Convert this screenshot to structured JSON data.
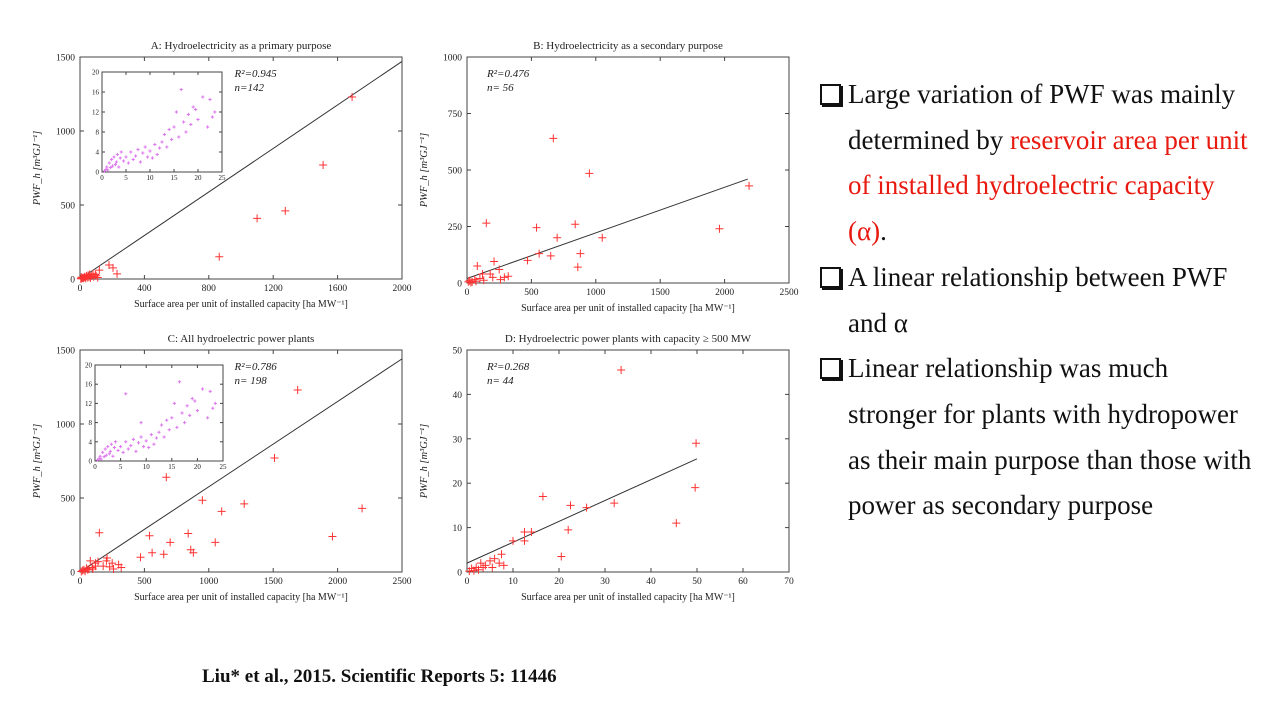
{
  "bullets": [
    {
      "parts": [
        {
          "text": "Large variation of PWF was mainly determined by ",
          "hl": false
        },
        {
          "text": "reservoir area per unit of installed hydroelectric capacity (α)",
          "hl": true
        },
        {
          "text": ".",
          "hl": false
        }
      ]
    },
    {
      "parts": [
        {
          "text": "A linear relationship between PWF and α",
          "hl": false
        }
      ]
    },
    {
      "parts": [
        {
          "text": "Linear relationship was much stronger for plants with hydropower as their main purpose than those with power as secondary purpose",
          "hl": false
        }
      ]
    }
  ],
  "citation": "Liu* et al., 2015. Scientific Reports 5: 11446",
  "colors": {
    "points": "#ff3333",
    "inset_points": "#dd77ee",
    "fit_line": "#333333",
    "highlight": "#e8190f"
  },
  "chart_data": [
    {
      "type": "scatter",
      "title": "A: Hydroelectricity as a primary purpose",
      "xlabel": "Surface area per unit of installed capacity [ha MW⁻¹]",
      "ylabel": "PWF_h [m³GJ⁻¹]",
      "xlim": [
        0,
        2000
      ],
      "ylim": [
        0,
        1500
      ],
      "xticks": [
        0,
        400,
        800,
        1200,
        1600,
        2000
      ],
      "yticks": [
        0,
        500,
        1000,
        1500
      ],
      "stats": [
        "R²=0.945",
        "n=142"
      ],
      "fit": [
        [
          0,
          0
        ],
        [
          2000,
          1470
        ]
      ],
      "points": [
        [
          1690,
          1230
        ],
        [
          1510,
          770
        ],
        [
          1275,
          460
        ],
        [
          1100,
          410
        ],
        [
          865,
          150
        ],
        [
          230,
          35
        ],
        [
          205,
          75
        ],
        [
          180,
          95
        ],
        [
          120,
          60
        ],
        [
          95,
          30
        ],
        [
          80,
          35
        ],
        [
          70,
          20
        ],
        [
          60,
          30
        ],
        [
          50,
          25
        ],
        [
          45,
          10
        ],
        [
          40,
          20
        ],
        [
          30,
          15
        ],
        [
          25,
          10
        ],
        [
          20,
          5
        ],
        [
          15,
          8
        ],
        [
          10,
          3
        ],
        [
          5,
          2
        ],
        [
          8,
          12
        ],
        [
          35,
          5
        ],
        [
          55,
          12
        ],
        [
          65,
          8
        ],
        [
          85,
          15
        ],
        [
          100,
          22
        ],
        [
          110,
          10
        ]
      ],
      "inset": {
        "xlim": [
          0,
          25
        ],
        "ylim": [
          0,
          20
        ],
        "xticks": [
          0,
          5,
          10,
          15,
          20,
          25
        ],
        "yticks": [
          0,
          4,
          8,
          12,
          16,
          20
        ],
        "points": [
          [
            0.5,
            0.2
          ],
          [
            0.8,
            0.5
          ],
          [
            1,
            1
          ],
          [
            1.2,
            0.4
          ],
          [
            1.5,
            1.8
          ],
          [
            1.8,
            0.9
          ],
          [
            2,
            2.5
          ],
          [
            2.2,
            1.2
          ],
          [
            2.5,
            3
          ],
          [
            2.8,
            1.5
          ],
          [
            3,
            2
          ],
          [
            3.2,
            3.5
          ],
          [
            3.5,
            1
          ],
          [
            3.8,
            2.8
          ],
          [
            4,
            4
          ],
          [
            4.5,
            2.2
          ],
          [
            5,
            3
          ],
          [
            5.5,
            1.8
          ],
          [
            6,
            4
          ],
          [
            6.5,
            2.5
          ],
          [
            7,
            3.2
          ],
          [
            7.5,
            4.5
          ],
          [
            8,
            2
          ],
          [
            8.5,
            3.8
          ],
          [
            9,
            5
          ],
          [
            9.5,
            3
          ],
          [
            10,
            4.2
          ],
          [
            10.5,
            2.8
          ],
          [
            11,
            5.5
          ],
          [
            11.5,
            3.5
          ],
          [
            12,
            4.8
          ],
          [
            12.5,
            6
          ],
          [
            13,
            7.5
          ],
          [
            13.5,
            5
          ],
          [
            14,
            8.5
          ],
          [
            14.5,
            6.5
          ],
          [
            15,
            9
          ],
          [
            15.5,
            12
          ],
          [
            16,
            7
          ],
          [
            16.5,
            16.5
          ],
          [
            17,
            10
          ],
          [
            17.5,
            8
          ],
          [
            18,
            11.5
          ],
          [
            18.5,
            9.5
          ],
          [
            19,
            13
          ],
          [
            19.5,
            12.5
          ],
          [
            20,
            10.5
          ],
          [
            21,
            15
          ],
          [
            22,
            9
          ],
          [
            22.5,
            14.5
          ],
          [
            23,
            11
          ],
          [
            23.5,
            12
          ]
        ]
      }
    },
    {
      "type": "scatter",
      "title": "B:  Hydroelectricity as a secondary purpose",
      "xlabel": "Surface area per unit of installed capacity [ha MW⁻¹]",
      "ylabel": "PWF_h [m³GJ⁻¹]",
      "xlim": [
        0,
        2500
      ],
      "ylim": [
        0,
        1000
      ],
      "xticks": [
        0,
        500,
        1000,
        1500,
        2000,
        2500
      ],
      "yticks": [
        0,
        250,
        500,
        750,
        1000
      ],
      "stats": [
        "R²=0.476",
        "n= 56"
      ],
      "fit": [
        [
          0,
          20
        ],
        [
          2180,
          460
        ]
      ],
      "points": [
        [
          2190,
          430
        ],
        [
          1960,
          240
        ],
        [
          1050,
          200
        ],
        [
          950,
          485
        ],
        [
          880,
          130
        ],
        [
          860,
          70
        ],
        [
          840,
          260
        ],
        [
          700,
          200
        ],
        [
          670,
          640
        ],
        [
          650,
          120
        ],
        [
          560,
          130
        ],
        [
          540,
          245
        ],
        [
          470,
          100
        ],
        [
          320,
          30
        ],
        [
          290,
          25
        ],
        [
          250,
          60
        ],
        [
          210,
          95
        ],
        [
          180,
          40
        ],
        [
          150,
          265
        ],
        [
          120,
          40
        ],
        [
          100,
          20
        ],
        [
          80,
          75
        ],
        [
          60,
          15
        ],
        [
          40,
          5
        ],
        [
          20,
          10
        ],
        [
          30,
          2
        ],
        [
          70,
          8
        ],
        [
          130,
          12
        ],
        [
          200,
          25
        ],
        [
          260,
          15
        ],
        [
          10,
          5
        ]
      ]
    },
    {
      "type": "scatter",
      "title": "C: All hydroelectric power plants",
      "xlabel": "Surface area per unit of installed capacity [ha MW⁻¹]",
      "ylabel": "PWF_h [m³GJ⁻¹]",
      "xlim": [
        0,
        2500
      ],
      "ylim": [
        0,
        1500
      ],
      "xticks": [
        0,
        500,
        1000,
        1500,
        2000,
        2500
      ],
      "yticks": [
        0,
        500,
        1000,
        1500
      ],
      "stats": [
        "R²=0.786",
        "n= 198"
      ],
      "fit": [
        [
          0,
          0
        ],
        [
          2500,
          1440
        ]
      ],
      "points": [
        [
          1690,
          1230
        ],
        [
          1510,
          770
        ],
        [
          1275,
          460
        ],
        [
          1100,
          410
        ],
        [
          1050,
          200
        ],
        [
          2190,
          430
        ],
        [
          1960,
          240
        ],
        [
          950,
          485
        ],
        [
          880,
          130
        ],
        [
          860,
          150
        ],
        [
          840,
          260
        ],
        [
          700,
          200
        ],
        [
          670,
          640
        ],
        [
          650,
          120
        ],
        [
          560,
          130
        ],
        [
          540,
          245
        ],
        [
          470,
          100
        ],
        [
          320,
          30
        ],
        [
          250,
          60
        ],
        [
          210,
          95
        ],
        [
          180,
          40
        ],
        [
          150,
          265
        ],
        [
          120,
          40
        ],
        [
          100,
          20
        ],
        [
          80,
          75
        ],
        [
          60,
          15
        ],
        [
          40,
          5
        ],
        [
          20,
          10
        ],
        [
          230,
          35
        ],
        [
          205,
          75
        ],
        [
          120,
          60
        ],
        [
          95,
          30
        ],
        [
          70,
          20
        ],
        [
          50,
          25
        ],
        [
          30,
          15
        ],
        [
          10,
          3
        ],
        [
          140,
          70
        ],
        [
          260,
          20
        ],
        [
          300,
          50
        ]
      ],
      "inset": {
        "xlim": [
          0,
          25
        ],
        "ylim": [
          0,
          20
        ],
        "xticks": [
          0,
          5,
          10,
          15,
          20,
          25
        ],
        "yticks": [
          0,
          4,
          8,
          12,
          16,
          20
        ],
        "points": [
          [
            0.5,
            0.2
          ],
          [
            0.8,
            0.5
          ],
          [
            1,
            1
          ],
          [
            1.2,
            0.4
          ],
          [
            1.5,
            1.8
          ],
          [
            1.8,
            0.9
          ],
          [
            2,
            2.5
          ],
          [
            2.2,
            1.2
          ],
          [
            2.5,
            3
          ],
          [
            2.8,
            1.5
          ],
          [
            3,
            2
          ],
          [
            3.2,
            3.5
          ],
          [
            3.5,
            1
          ],
          [
            3.8,
            2.8
          ],
          [
            4,
            4
          ],
          [
            4.5,
            2.2
          ],
          [
            5,
            3
          ],
          [
            5.5,
            1.8
          ],
          [
            6,
            4
          ],
          [
            6.5,
            2.5
          ],
          [
            7,
            3.2
          ],
          [
            7.5,
            4.5
          ],
          [
            8,
            2
          ],
          [
            8.5,
            3.8
          ],
          [
            9,
            5
          ],
          [
            9.5,
            3
          ],
          [
            10,
            4.2
          ],
          [
            10.5,
            2.8
          ],
          [
            11,
            5.5
          ],
          [
            11.5,
            3.5
          ],
          [
            12,
            4.8
          ],
          [
            12.5,
            6
          ],
          [
            13,
            7.5
          ],
          [
            13.5,
            5
          ],
          [
            14,
            8.5
          ],
          [
            14.5,
            6.5
          ],
          [
            15,
            9
          ],
          [
            15.5,
            12
          ],
          [
            16,
            7
          ],
          [
            16.5,
            16.5
          ],
          [
            17,
            10
          ],
          [
            17.5,
            8
          ],
          [
            18,
            11.5
          ],
          [
            18.5,
            9.5
          ],
          [
            19,
            13
          ],
          [
            19.5,
            12.5
          ],
          [
            20,
            10.5
          ],
          [
            21,
            15
          ],
          [
            22,
            9
          ],
          [
            22.5,
            14.5
          ],
          [
            23,
            11
          ],
          [
            23.5,
            12
          ],
          [
            6,
            14
          ],
          [
            9,
            8
          ]
        ]
      }
    },
    {
      "type": "scatter",
      "title": "D: Hydroelectric power plants with capacity ≥ 500 MW",
      "xlabel": "Surface area per unit of installed capacity [ha MW⁻¹]",
      "ylabel": "PWF_h [m³GJ⁻¹]",
      "xlim": [
        0,
        70
      ],
      "ylim": [
        0,
        50
      ],
      "xticks": [
        0,
        10,
        20,
        30,
        40,
        50,
        60,
        70
      ],
      "yticks": [
        0,
        10,
        20,
        30,
        40,
        50
      ],
      "stats": [
        "R²=0.268",
        "n= 44"
      ],
      "fit": [
        [
          0,
          2
        ],
        [
          50,
          25.5
        ]
      ],
      "points": [
        [
          33.5,
          45.5
        ],
        [
          49.8,
          29
        ],
        [
          49.6,
          19
        ],
        [
          45.5,
          11
        ],
        [
          32,
          15.5
        ],
        [
          26,
          14.5
        ],
        [
          22.5,
          15
        ],
        [
          22,
          9.5
        ],
        [
          20.5,
          3.5
        ],
        [
          16.5,
          17
        ],
        [
          14,
          9
        ],
        [
          12.5,
          9
        ],
        [
          12.5,
          7
        ],
        [
          10,
          7
        ],
        [
          8,
          1.5
        ],
        [
          7,
          2
        ],
        [
          6,
          3
        ],
        [
          5,
          2.5
        ],
        [
          4,
          1.5
        ],
        [
          3.5,
          1
        ],
        [
          3,
          2
        ],
        [
          2.5,
          0.5
        ],
        [
          2,
          1
        ],
        [
          1.5,
          0.3
        ],
        [
          1,
          0.8
        ],
        [
          0.5,
          0.2
        ],
        [
          7.5,
          4
        ],
        [
          5.5,
          1
        ]
      ]
    }
  ]
}
